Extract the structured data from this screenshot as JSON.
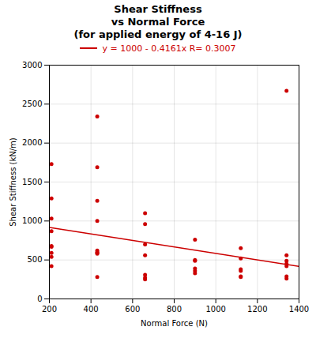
{
  "chart_data": {
    "type": "scatter",
    "title": "Shear Stiffness\nvs Normal Force\n(for applied energy of 4-16 J)",
    "xlabel": "Normal Force (N)",
    "ylabel": "Shear Stiffness (kN/m)",
    "xlim": [
      200,
      1400
    ],
    "ylim": [
      0,
      3000
    ],
    "xticks": [
      200,
      400,
      600,
      800,
      1000,
      1200,
      1400
    ],
    "yticks": [
      0,
      500,
      1000,
      1500,
      2000,
      2500,
      3000
    ],
    "grid": true,
    "legend": "top",
    "series": [
      {
        "type": "scatter",
        "color": "#cc0000",
        "x": [
          210,
          210,
          210,
          210,
          210,
          210,
          210,
          210,
          210,
          430,
          430,
          430,
          430,
          430,
          430,
          430,
          430,
          430,
          660,
          660,
          660,
          660,
          660,
          660,
          660,
          900,
          900,
          900,
          900,
          900,
          900,
          1120,
          1120,
          1120,
          1120,
          1120,
          1120,
          1340,
          1340,
          1340,
          1340,
          1340,
          1340,
          1340
        ],
        "values": [
          1730,
          1290,
          1030,
          870,
          680,
          670,
          590,
          540,
          420,
          2340,
          1690,
          1260,
          1000,
          620,
          600,
          590,
          580,
          280,
          1100,
          960,
          700,
          560,
          310,
          270,
          250,
          760,
          500,
          490,
          390,
          360,
          330,
          650,
          520,
          380,
          360,
          290,
          280,
          2670,
          560,
          490,
          450,
          420,
          290,
          260
        ]
      },
      {
        "type": "line",
        "color": "#cc0000",
        "name": "y = 1000 - 0.4161x  R= 0.3007",
        "x": [
          200,
          1400
        ],
        "values": [
          916.78,
          417.46
        ]
      }
    ]
  }
}
